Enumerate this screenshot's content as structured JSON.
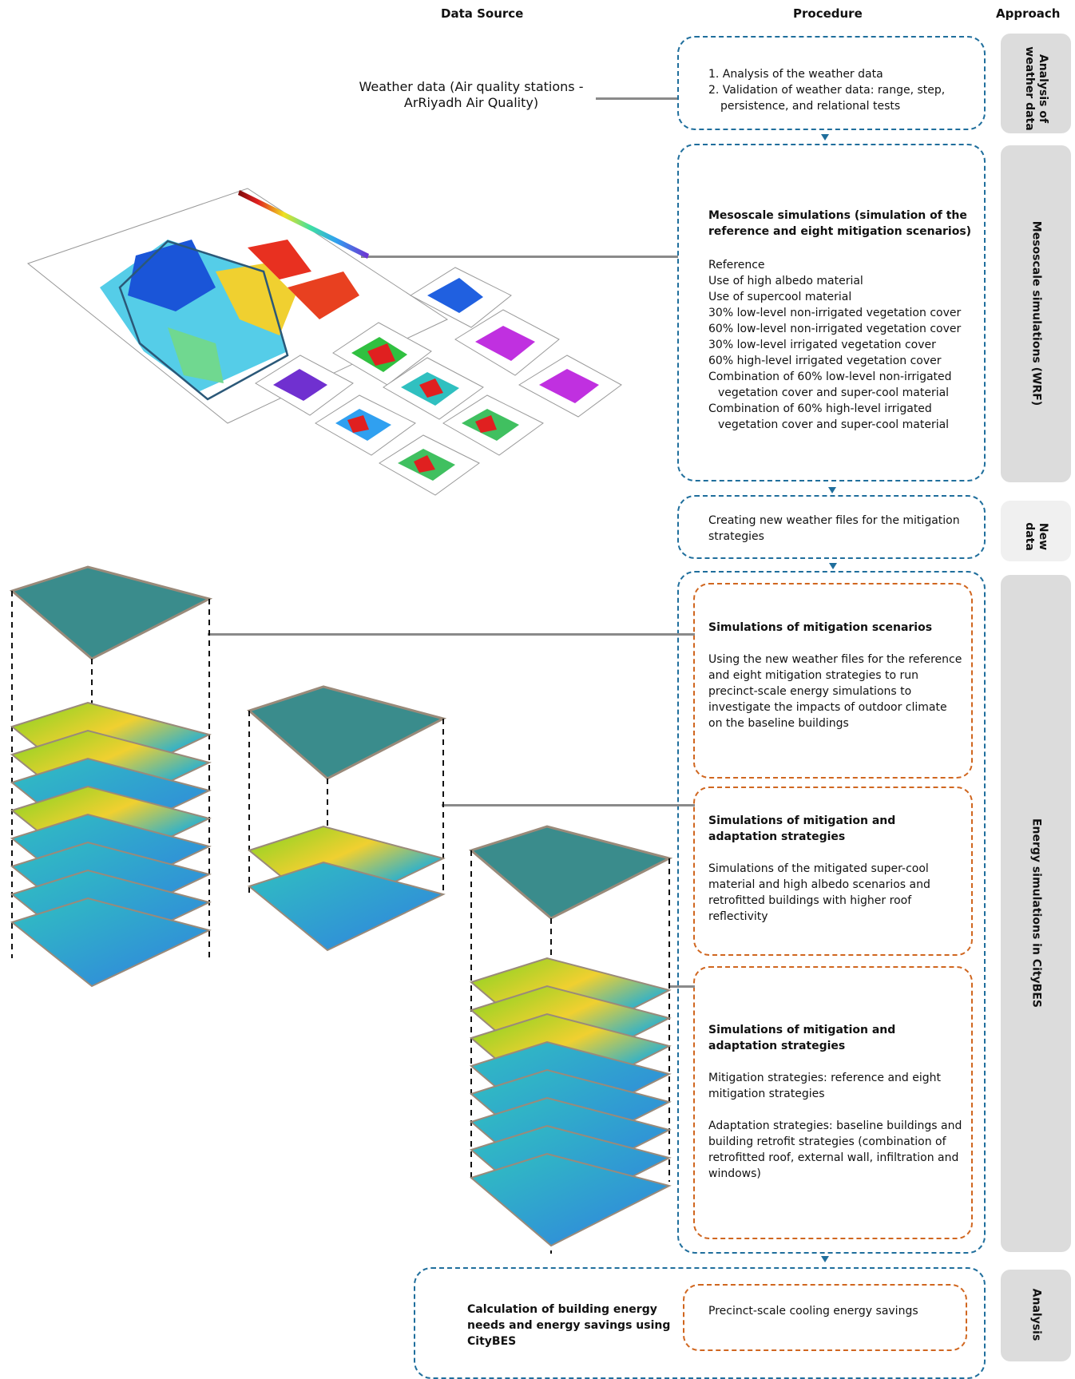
{
  "headers": {
    "data_source": "Data Source",
    "procedure": "Procedure",
    "approach": "Approach"
  },
  "weather_source": {
    "line1": "Weather data (Air quality stations -",
    "line2": "ArRiyadh Air Quality)"
  },
  "step1": {
    "item1": "1. Analysis of the weather data",
    "item2": "2. Validation of weather data: range, step,",
    "item2b": "persistence, and relational tests",
    "approach": "Analysis of weather data"
  },
  "step2": {
    "title": "Mesoscale simulations (simulation of the reference and eight mitigation scenarios)",
    "items": [
      "Reference",
      "Use of high albedo material",
      "Use of supercool material",
      "30% low-level non-irrigated vegetation cover",
      "60% low-level non-irrigated vegetation cover",
      "30% low-level irrigated vegetation cover",
      "60% high-level irrigated vegetation cover",
      "Combination of 60% low-level non-irrigated",
      "vegetation cover and super-cool material",
      "Combination of 60% high-level irrigated",
      "vegetation cover and super-cool material"
    ],
    "approach": "Mesoscale simulations (WRF)"
  },
  "step3": {
    "text": "Creating new weather files for the mitigation strategies",
    "approach": "New data"
  },
  "step4": {
    "approach": "Energy simulations in CityBES",
    "a": {
      "title": "Simulations of mitigation scenarios",
      "body": "Using the new weather files for the reference and eight mitigation strategies to run precinct-scale energy simulations to investigate the impacts of outdoor climate on the baseline buildings"
    },
    "b": {
      "title": "Simulations of mitigation and adaptation strategies",
      "body": "Simulations of the mitigated super-cool material and high albedo scenarios and retrofitted buildings with higher roof reflectivity"
    },
    "c": {
      "title": "Simulations of mitigation and adaptation strategies",
      "body1": "Mitigation strategies: reference and eight mitigation strategies",
      "body2": "Adaptation strategies: baseline buildings and building retrofit strategies (combination of retrofitted roof, external wall, infiltration and windows)"
    }
  },
  "step5": {
    "left": "Calculation of building energy needs and energy savings using CityBES",
    "right": "Precinct-scale cooling energy savings",
    "approach": "Analysis"
  },
  "colors": {
    "blue_dash": "#1f6e9c",
    "orange_dash": "#d0661f",
    "connector": "#8a8a8a",
    "approach_bg": "#dcdcdc",
    "approach_bg_light": "#f0f0f0"
  }
}
